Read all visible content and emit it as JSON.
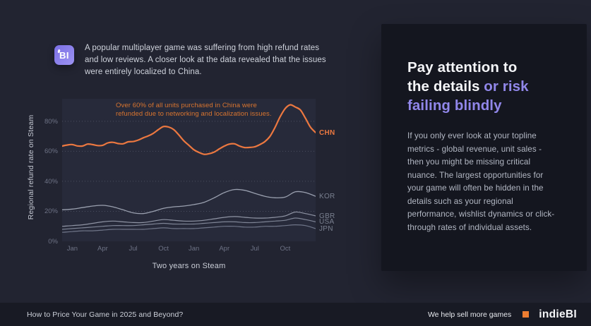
{
  "page": {
    "bg": "#222431",
    "accent_orange": "#ec7840",
    "accent_purple": "#9187ea"
  },
  "header": {
    "logo_text": "BI",
    "paragraph": "A popular multiplayer game was suffering from high refund rates and low reviews. A closer look at the data revealed that the issues were entirely localized to China."
  },
  "chart_data": {
    "type": "line",
    "ylabel": "Regional refund rate on Steam",
    "xlabel": "Two years on Steam",
    "ylim": [
      0,
      95
    ],
    "grid": "dotted-horizontal",
    "plot_bg": "#272a3a",
    "grid_color": "#4b4f61",
    "y_ticks": [
      0,
      20,
      40,
      60,
      80
    ],
    "y_tick_suffix": "%",
    "x_tick_labels": [
      "Jan",
      "Apr",
      "Jul",
      "Oct",
      "Jan",
      "Apr",
      "Jul",
      "Oct"
    ],
    "x_tick_months": [
      1,
      4,
      7,
      10,
      13,
      16,
      19,
      22
    ],
    "x_total_months": 25,
    "annotation": {
      "line1": "Over 60% of all units  purchased in China were",
      "line2": "refunded due to networking and localization issues.",
      "color": "#d9752f"
    },
    "legend_position": "right-edge-labels",
    "series": [
      {
        "name": "CHN",
        "color": "#ec7840",
        "label_color": "#ec7840",
        "stroke_width": 2.2,
        "values": [
          63.5,
          64.2,
          64.5,
          63.6,
          63.5,
          64.8,
          64.5,
          63.8,
          64,
          65.6,
          66,
          65.2,
          65,
          66.3,
          66.5,
          67.5,
          69,
          70.3,
          72,
          74.5,
          76.5,
          76.2,
          74.5,
          71,
          67,
          64,
          61,
          59.2,
          58,
          58.4,
          59.5,
          61.6,
          63.5,
          64.8,
          65,
          63.5,
          62.5,
          62.6,
          63,
          64.5,
          66.5,
          70,
          76,
          83,
          88.5,
          91,
          89.5,
          87.5,
          82,
          76,
          72.5
        ]
      },
      {
        "name": "KOR",
        "color": "#9aa0af",
        "label_color": "#7a8090",
        "stroke_width": 1.3,
        "values": [
          21,
          21.5,
          22.5,
          23.5,
          24,
          23,
          21,
          19,
          18.5,
          20,
          22,
          23,
          23.5,
          24.5,
          26,
          29,
          32.5,
          34.5,
          34,
          32,
          30,
          29,
          29.5,
          33,
          32.5,
          30
        ]
      },
      {
        "name": "GBR",
        "color": "#8f94a4",
        "label_color": "#7a8090",
        "stroke_width": 1.2,
        "values": [
          10,
          10.5,
          11,
          12,
          13,
          13.5,
          13,
          12.5,
          12.5,
          13.5,
          14.5,
          14,
          13.5,
          13.5,
          14,
          15,
          16,
          16.5,
          16,
          15.5,
          15.5,
          16,
          17,
          19.5,
          18.5,
          17
        ]
      },
      {
        "name": "USA",
        "color": "#7e8495",
        "label_color": "#7a8090",
        "stroke_width": 1.2,
        "values": [
          8,
          8.5,
          9,
          9.5,
          10,
          10.5,
          10.5,
          10.5,
          11,
          11.5,
          12,
          11.5,
          11.5,
          11.5,
          12,
          12.5,
          13,
          13,
          12.5,
          12.5,
          13,
          13.5,
          14,
          15.5,
          14.5,
          13
        ]
      },
      {
        "name": "JPN",
        "color": "#6f7588",
        "label_color": "#7a8090",
        "stroke_width": 1.2,
        "values": [
          6,
          6.5,
          7,
          7,
          7.5,
          8,
          8,
          8,
          8,
          8.5,
          9,
          8.5,
          8.5,
          8.5,
          9,
          9.5,
          10,
          10,
          9.5,
          9.5,
          10,
          10,
          10.5,
          11,
          10.5,
          8.5
        ]
      }
    ]
  },
  "panel": {
    "heading": {
      "line1": "Pay attention to",
      "line2_white": "the details ",
      "line2_purple": "or risk",
      "line3": "failing blindly"
    },
    "body": "If you only ever look at your topline metrics - global revenue, unit sales - then you might be missing critical nuance. The largest opportunities for your game will often be hidden in the details such as your regional performance, wishlist dynamics or click-through rates of individual assets."
  },
  "footer": {
    "left": "How to Price Your Game in 2025 and Beyond?",
    "tagline": "We help sell more games",
    "brand": "indieBI"
  }
}
